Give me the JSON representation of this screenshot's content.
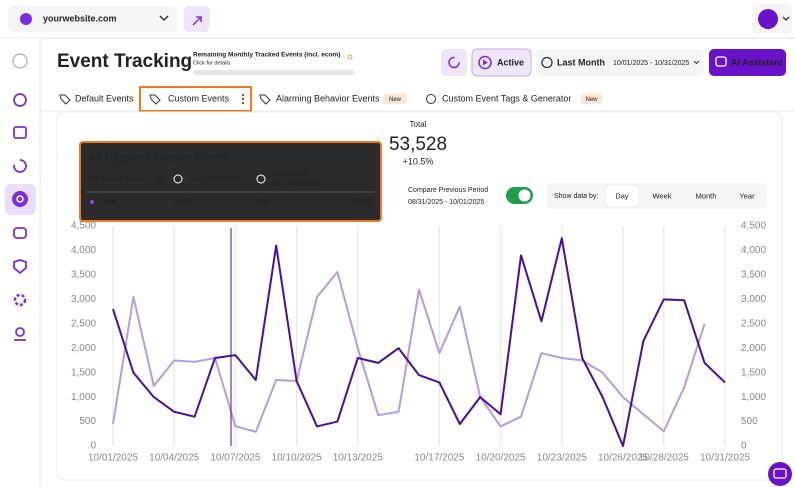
{
  "topbar": {
    "site": "yourwebsite.com"
  },
  "header": {
    "title": "Event Tracking",
    "quota_label": "Remaining Monthly Tracked Events (incl. ecom)",
    "quota_link": "Click for details",
    "status": "Active",
    "period": "Last Month",
    "date_range": "10/01/2025 - 10/31/2025",
    "assistant": "AI Assistant"
  },
  "tabs": [
    {
      "label": "Default Events"
    },
    {
      "label": "Custom Events"
    },
    {
      "label": "Alarming Behavior Events",
      "badge": "New"
    },
    {
      "label": "Custom Event Tags & Generator",
      "badge": "New"
    }
  ],
  "summary": {
    "label": "Total",
    "value": "53,528",
    "change": "+10.5%"
  },
  "compare": {
    "label": "Compare Previous Period",
    "range": "08/31/2025 - 10/01/2025"
  },
  "granularity": {
    "label": "Show data by:",
    "options": [
      "Day",
      "Week",
      "Month",
      "Year"
    ]
  },
  "tooltip": {
    "title": "All Triggered Custom Events",
    "category": "All Event Cate...",
    "count": "(1)",
    "date": "Tue, 10/07/2025",
    "compared_label": "Compared to",
    "compared_date": "Sat, 09/06/2025",
    "row_label": "Total",
    "current": "1,858",
    "previous": "405",
    "change": "+359%"
  },
  "chart_data": {
    "type": "line",
    "categories": [
      "10/01/2025",
      null,
      null,
      "10/04/2025",
      null,
      null,
      "10/07/2025",
      null,
      null,
      "10/10/2025",
      null,
      null,
      "10/13/2025",
      null,
      null,
      null,
      "10/17/2025",
      null,
      null,
      "10/20/2025",
      null,
      null,
      "10/23/2025",
      null,
      null,
      "10/26/2025",
      null,
      "10/28/2025",
      null,
      null,
      "10/31/2025"
    ],
    "series": [
      {
        "color": "#4a0e9e",
        "values": [
          2800,
          1500,
          1000,
          700,
          600,
          1800,
          1858,
          1350,
          4100,
          1330,
          400,
          500,
          1800,
          1700,
          2000,
          1450,
          1300,
          450,
          1000,
          650,
          3900,
          2550,
          4250,
          1800,
          1000,
          0,
          2150,
          3000,
          2980,
          1700,
          1300
        ]
      },
      {
        "color": "#b59be0",
        "axis": "y2",
        "values": [
          450,
          3050,
          1230,
          1750,
          1720,
          1800,
          405,
          290,
          1350,
          1330,
          3050,
          3560,
          2000,
          630,
          700,
          3200,
          1900,
          2850,
          1000,
          400,
          600,
          1900,
          1800,
          1750,
          1500,
          1000,
          650,
          300,
          1200,
          2500,
          null
        ]
      }
    ],
    "ylim": [
      0,
      4500
    ],
    "yticks": [
      0,
      500,
      {
        "value": 1000,
        "label": "1,000"
      },
      {
        "value": 1500,
        "label": "1,500"
      },
      {
        "value": 2000,
        "label": "2,000"
      },
      {
        "value": 2500,
        "label": "2,500"
      },
      {
        "value": 3000,
        "label": "3,000"
      },
      {
        "value": 3500,
        "label": "3,500"
      },
      {
        "value": 4000,
        "label": "4,000"
      },
      {
        "value": 4500,
        "label": "4,500"
      }
    ],
    "y2lim": [
      0,
      4500
    ],
    "y2ticks": [
      0,
      500,
      {
        "value": 1000,
        "label": "1,000"
      },
      {
        "value": 1500,
        "label": "1,500"
      },
      {
        "value": 2000,
        "label": "2,000"
      },
      {
        "value": 2500,
        "label": "2,500"
      },
      {
        "value": 3000,
        "label": "3,000"
      },
      {
        "value": 3500,
        "label": "3,500"
      },
      {
        "value": 4000,
        "label": "4,000"
      },
      {
        "value": 4500,
        "label": "4,500"
      }
    ],
    "grid": true
  }
}
